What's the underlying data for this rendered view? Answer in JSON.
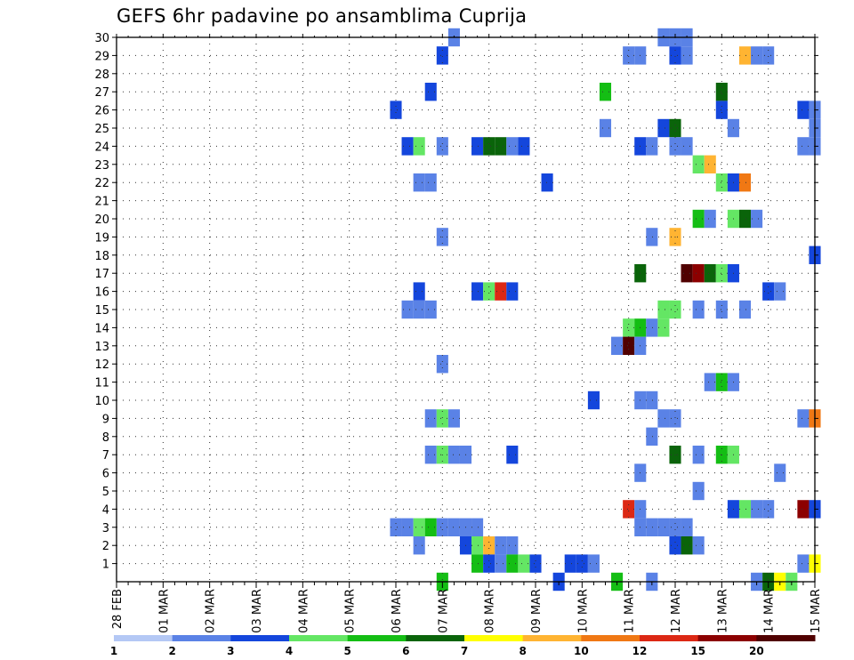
{
  "chart_data": {
    "type": "heatmap",
    "title": "GEFS 6hr padavine po ansamblima Cuprija",
    "xlabel": "",
    "ylabel": "",
    "x_ticks": [
      "28 FEB",
      "01 MAR",
      "02 MAR",
      "03 MAR",
      "04 MAR",
      "05 MAR",
      "06 MAR",
      "07 MAR",
      "08 MAR",
      "09 MAR",
      "10 MAR",
      "11 MAR",
      "12 MAR",
      "13 MAR",
      "14 MAR",
      "15 MAR"
    ],
    "y_ticks": [
      "1",
      "2",
      "3",
      "4",
      "5",
      "6",
      "7",
      "8",
      "9",
      "10",
      "11",
      "12",
      "13",
      "14",
      "15",
      "16",
      "17",
      "18",
      "19",
      "20",
      "21",
      "22",
      "23",
      "24",
      "25",
      "26",
      "27",
      "28",
      "29",
      "30"
    ],
    "xlim": [
      0,
      15
    ],
    "ylim": [
      0,
      30
    ],
    "step_days": 0.25,
    "grid": true,
    "colorbar": {
      "labels": [
        "1",
        "2",
        "3",
        "4",
        "5",
        "6",
        "7",
        "8",
        "10",
        "12",
        "15",
        "20"
      ],
      "colors": [
        "#b4c8f5",
        "#5a82e6",
        "#1446dc",
        "#64e664",
        "#14be14",
        "#0a640a",
        "#ffff00",
        "#ffb432",
        "#f07814",
        "#dc2814",
        "#8c0000",
        "#500000"
      ]
    },
    "cells": [
      [
        7.25,
        30,
        1
      ],
      [
        11.75,
        30,
        1
      ],
      [
        12.0,
        30,
        1
      ],
      [
        12.25,
        30,
        1
      ],
      [
        7.0,
        29,
        2
      ],
      [
        11.0,
        29,
        1
      ],
      [
        11.25,
        29,
        1
      ],
      [
        12.0,
        29,
        2
      ],
      [
        12.25,
        29,
        1
      ],
      [
        13.5,
        29,
        7
      ],
      [
        13.75,
        29,
        1
      ],
      [
        14.0,
        29,
        1
      ],
      [
        6.75,
        27,
        2
      ],
      [
        10.5,
        27,
        4
      ],
      [
        13.0,
        27,
        5
      ],
      [
        6.0,
        26,
        2
      ],
      [
        13.0,
        26,
        2
      ],
      [
        14.75,
        26,
        2
      ],
      [
        15.0,
        26,
        1
      ],
      [
        10.5,
        25,
        1
      ],
      [
        11.75,
        25,
        2
      ],
      [
        12.0,
        25,
        5
      ],
      [
        13.25,
        25,
        1
      ],
      [
        15.0,
        25,
        1
      ],
      [
        6.25,
        24,
        2
      ],
      [
        6.5,
        24,
        3
      ],
      [
        7.0,
        24,
        1
      ],
      [
        7.75,
        24,
        2
      ],
      [
        8.0,
        24,
        5
      ],
      [
        8.25,
        24,
        5
      ],
      [
        8.5,
        24,
        1
      ],
      [
        8.75,
        24,
        2
      ],
      [
        11.25,
        24,
        2
      ],
      [
        11.5,
        24,
        1
      ],
      [
        12.0,
        24,
        1
      ],
      [
        12.25,
        24,
        1
      ],
      [
        14.75,
        24,
        1
      ],
      [
        15.0,
        24,
        1
      ],
      [
        12.5,
        23,
        3
      ],
      [
        12.75,
        23,
        7
      ],
      [
        6.5,
        22,
        1
      ],
      [
        6.75,
        22,
        1
      ],
      [
        9.25,
        22,
        2
      ],
      [
        13.0,
        22,
        3
      ],
      [
        13.25,
        22,
        2
      ],
      [
        13.5,
        22,
        8
      ],
      [
        12.5,
        20,
        4
      ],
      [
        12.75,
        20,
        1
      ],
      [
        13.25,
        20,
        3
      ],
      [
        13.5,
        20,
        5
      ],
      [
        13.75,
        20,
        1
      ],
      [
        7.0,
        19,
        1
      ],
      [
        11.5,
        19,
        1
      ],
      [
        12.0,
        19,
        7
      ],
      [
        15.0,
        18,
        2
      ],
      [
        11.25,
        17,
        5
      ],
      [
        12.25,
        17,
        11
      ],
      [
        12.5,
        17,
        10
      ],
      [
        12.75,
        17,
        5
      ],
      [
        13.0,
        17,
        3
      ],
      [
        13.25,
        17,
        2
      ],
      [
        6.5,
        16,
        2
      ],
      [
        7.75,
        16,
        2
      ],
      [
        8.0,
        16,
        3
      ],
      [
        8.25,
        16,
        9
      ],
      [
        8.5,
        16,
        2
      ],
      [
        14.0,
        16,
        2
      ],
      [
        14.25,
        16,
        1
      ],
      [
        6.25,
        15,
        1
      ],
      [
        6.5,
        15,
        1
      ],
      [
        6.75,
        15,
        1
      ],
      [
        11.75,
        15,
        3
      ],
      [
        12.0,
        15,
        3
      ],
      [
        12.5,
        15,
        1
      ],
      [
        13.0,
        15,
        1
      ],
      [
        13.5,
        15,
        1
      ],
      [
        11.0,
        14,
        3
      ],
      [
        11.25,
        14,
        4
      ],
      [
        11.5,
        14,
        1
      ],
      [
        11.75,
        14,
        3
      ],
      [
        10.75,
        13,
        1
      ],
      [
        11.0,
        13,
        11
      ],
      [
        11.25,
        13,
        1
      ],
      [
        7.0,
        12,
        1
      ],
      [
        12.75,
        11,
        1
      ],
      [
        13.0,
        11,
        4
      ],
      [
        13.25,
        11,
        1
      ],
      [
        10.25,
        10,
        2
      ],
      [
        11.25,
        10,
        1
      ],
      [
        11.5,
        10,
        1
      ],
      [
        6.75,
        9,
        1
      ],
      [
        7.0,
        9,
        3
      ],
      [
        7.25,
        9,
        1
      ],
      [
        11.75,
        9,
        1
      ],
      [
        12.0,
        9,
        1
      ],
      [
        14.75,
        9,
        1
      ],
      [
        15.0,
        9,
        8
      ],
      [
        11.5,
        8,
        1
      ],
      [
        6.75,
        7,
        1
      ],
      [
        7.0,
        7,
        3
      ],
      [
        7.25,
        7,
        1
      ],
      [
        7.5,
        7,
        1
      ],
      [
        8.5,
        7,
        2
      ],
      [
        12.0,
        7,
        5
      ],
      [
        12.5,
        7,
        1
      ],
      [
        13.0,
        7,
        4
      ],
      [
        13.25,
        7,
        3
      ],
      [
        11.25,
        6,
        1
      ],
      [
        14.25,
        6,
        1
      ],
      [
        12.5,
        5,
        1
      ],
      [
        11.0,
        4,
        9
      ],
      [
        11.25,
        4,
        1
      ],
      [
        13.25,
        4,
        2
      ],
      [
        13.5,
        4,
        3
      ],
      [
        13.75,
        4,
        1
      ],
      [
        14.0,
        4,
        1
      ],
      [
        14.75,
        4,
        10
      ],
      [
        15.0,
        4,
        2
      ],
      [
        6.0,
        3,
        1
      ],
      [
        6.25,
        3,
        1
      ],
      [
        6.5,
        3,
        3
      ],
      [
        6.75,
        3,
        4
      ],
      [
        7.0,
        3,
        1
      ],
      [
        7.25,
        3,
        1
      ],
      [
        7.5,
        3,
        1
      ],
      [
        7.75,
        3,
        1
      ],
      [
        11.25,
        3,
        1
      ],
      [
        11.5,
        3,
        1
      ],
      [
        11.75,
        3,
        1
      ],
      [
        12.0,
        3,
        1
      ],
      [
        12.25,
        3,
        1
      ],
      [
        6.5,
        2,
        1
      ],
      [
        7.5,
        2,
        2
      ],
      [
        7.75,
        2,
        3
      ],
      [
        8.0,
        2,
        7
      ],
      [
        8.25,
        2,
        1
      ],
      [
        8.5,
        2,
        1
      ],
      [
        12.0,
        2,
        2
      ],
      [
        12.25,
        2,
        5
      ],
      [
        12.5,
        2,
        1
      ],
      [
        7.75,
        1,
        4
      ],
      [
        8.0,
        1,
        2
      ],
      [
        8.25,
        1,
        1
      ],
      [
        8.5,
        1,
        4
      ],
      [
        8.75,
        1,
        3
      ],
      [
        9.0,
        1,
        2
      ],
      [
        9.75,
        1,
        2
      ],
      [
        10.0,
        1,
        2
      ],
      [
        10.25,
        1,
        1
      ],
      [
        14.75,
        1,
        1
      ],
      [
        15.0,
        1,
        6
      ],
      [
        7.0,
        0,
        4
      ],
      [
        9.5,
        0,
        2
      ],
      [
        10.75,
        0,
        4
      ],
      [
        11.5,
        0,
        1
      ],
      [
        13.75,
        0,
        1
      ],
      [
        14.0,
        0,
        5
      ],
      [
        14.25,
        0,
        6
      ],
      [
        14.5,
        0,
        3
      ]
    ]
  }
}
